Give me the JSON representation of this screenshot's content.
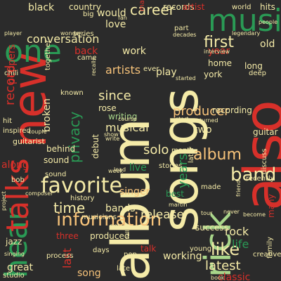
{
  "palette": {
    "background": "#2b2b2b",
    "red": "#d7302a",
    "green": "#2a9a55",
    "cream": "#f5eba8",
    "peach": "#f7c37a",
    "lightgreen": "#a8d68a",
    "orange": "#f08a4b"
  },
  "words": [
    {
      "text": "album",
      "color": "cream"
    },
    {
      "text": "songs",
      "color": "cream"
    },
    {
      "text": "also",
      "color": "red"
    },
    {
      "text": "new",
      "color": "red"
    },
    {
      "text": "hear",
      "color": "green"
    },
    {
      "text": "music",
      "color": "green"
    },
    {
      "text": "one",
      "color": "green"
    },
    {
      "text": "talks",
      "color": "red"
    },
    {
      "text": "rick",
      "color": "lightgreen"
    },
    {
      "text": "favorite",
      "color": "cream"
    },
    {
      "text": "information",
      "color": "peach"
    },
    {
      "text": "band",
      "color": "cream"
    },
    {
      "text": "like",
      "color": "cream"
    },
    {
      "text": "first",
      "color": "cream"
    },
    {
      "text": "album",
      "color": "peach"
    },
    {
      "text": "privacy",
      "color": "green"
    },
    {
      "text": "career",
      "color": "cream"
    },
    {
      "text": "conversation",
      "color": "cream"
    },
    {
      "text": "record",
      "color": "red"
    },
    {
      "text": "artists",
      "color": "peach"
    },
    {
      "text": "time",
      "color": "cream"
    },
    {
      "text": "broken",
      "color": "cream"
    },
    {
      "text": "solo",
      "color": "cream"
    },
    {
      "text": "producer",
      "color": "peach"
    },
    {
      "text": "musical",
      "color": "cream"
    },
    {
      "text": "since",
      "color": "cream"
    },
    {
      "text": "years",
      "color": "green"
    },
    {
      "text": "latest",
      "color": "cream"
    },
    {
      "text": "release",
      "color": "cream"
    },
    {
      "text": "rock",
      "color": "cream"
    },
    {
      "text": "bands",
      "color": "cream"
    },
    {
      "text": "last",
      "color": "red"
    },
    {
      "text": "song",
      "color": "peach"
    },
    {
      "text": "classic",
      "color": "red"
    },
    {
      "text": "life",
      "color": "green"
    },
    {
      "text": "black",
      "color": "cream"
    },
    {
      "text": "work",
      "color": "cream"
    },
    {
      "text": "play",
      "color": "cream"
    },
    {
      "text": "singer",
      "color": "peach"
    },
    {
      "text": "two",
      "color": "cream"
    },
    {
      "text": "best",
      "color": "green"
    },
    {
      "text": "recording",
      "color": "cream"
    },
    {
      "text": "sound",
      "color": "cream"
    },
    {
      "text": "behind",
      "color": "cream"
    },
    {
      "text": "guitarist",
      "color": "cream"
    },
    {
      "text": "writing",
      "color": "lightgreen"
    },
    {
      "text": "rose",
      "color": "cream"
    },
    {
      "text": "back",
      "color": "red"
    },
    {
      "text": "love",
      "color": "cream"
    },
    {
      "text": "would",
      "color": "cream"
    },
    {
      "text": "debut",
      "color": "cream"
    },
    {
      "text": "live",
      "color": "green"
    },
    {
      "text": "three",
      "color": "red"
    },
    {
      "text": "made",
      "color": "cream"
    },
    {
      "text": "history",
      "color": "cream"
    },
    {
      "text": "musicians",
      "color": "cream"
    },
    {
      "text": "produced",
      "color": "cream"
    },
    {
      "text": "success",
      "color": "cream"
    },
    {
      "text": "stories",
      "color": "cream"
    },
    {
      "text": "days",
      "color": "cream"
    },
    {
      "text": "pop",
      "color": "cream"
    },
    {
      "text": "working",
      "color": "cream"
    },
    {
      "text": "late",
      "color": "cream"
    },
    {
      "text": "talk",
      "color": "red"
    },
    {
      "text": "process",
      "color": "cream"
    },
    {
      "text": "great",
      "color": "cream"
    },
    {
      "text": "jazz",
      "color": "cream"
    },
    {
      "text": "studio",
      "color": "cream"
    },
    {
      "text": "hits",
      "color": "cream"
    },
    {
      "text": "country",
      "color": "cream"
    },
    {
      "text": "records",
      "color": "cream"
    },
    {
      "text": "artist",
      "color": "red"
    },
    {
      "text": "world",
      "color": "cream"
    },
    {
      "text": "big",
      "color": "cream"
    },
    {
      "text": "making",
      "color": "red"
    },
    {
      "text": "part",
      "color": "cream"
    },
    {
      "text": "old",
      "color": "cream"
    },
    {
      "text": "year",
      "color": "red"
    },
    {
      "text": "long",
      "color": "cream"
    },
    {
      "text": "deep",
      "color": "cream"
    },
    {
      "text": "home",
      "color": "cream"
    },
    {
      "text": "york",
      "color": "cream"
    },
    {
      "text": "came",
      "color": "cream"
    },
    {
      "text": "ever",
      "color": "cream"
    },
    {
      "text": "guitar",
      "color": "cream"
    },
    {
      "text": "month",
      "color": "cream"
    },
    {
      "text": "inspired",
      "color": "cream"
    },
    {
      "text": "hit",
      "color": "cream"
    },
    {
      "text": "bob",
      "color": "cream"
    },
    {
      "text": "along",
      "color": "red"
    },
    {
      "text": "sound",
      "color": "cream"
    },
    {
      "text": "lead",
      "color": "cream"
    },
    {
      "text": "tour",
      "color": "cream"
    },
    {
      "text": "set",
      "color": "cream"
    },
    {
      "text": "full",
      "color": "cream"
    },
    {
      "text": "young",
      "color": "cream"
    },
    {
      "text": "creative",
      "color": "cream"
    },
    {
      "text": "never",
      "color": "cream"
    },
    {
      "text": "become",
      "color": "cream"
    },
    {
      "text": "recently",
      "color": "cream"
    },
    {
      "text": "discuss",
      "color": "cream"
    },
    {
      "text": "friend",
      "color": "cream"
    },
    {
      "text": "many",
      "color": "red"
    },
    {
      "text": "family",
      "color": "cream"
    },
    {
      "text": "book",
      "color": "cream"
    },
    {
      "text": "peppers",
      "color": "red"
    },
    {
      "text": "chili",
      "color": "cream"
    },
    {
      "text": "series",
      "color": "cream"
    },
    {
      "text": "known",
      "color": "cream"
    },
    {
      "text": "together",
      "color": "cream"
    },
    {
      "text": "interview",
      "color": "cream"
    },
    {
      "text": "decades",
      "color": "cream"
    },
    {
      "text": "legendary",
      "color": "cream"
    },
    {
      "text": "people",
      "color": "cream"
    },
    {
      "text": "started",
      "color": "cream"
    },
    {
      "text": "couple",
      "color": "cream"
    },
    {
      "text": "composer",
      "color": "cream"
    },
    {
      "text": "singing",
      "color": "cream"
    },
    {
      "text": "project",
      "color": "cream"
    },
    {
      "text": "fan",
      "color": "cream"
    },
    {
      "text": "course",
      "color": "cream"
    },
    {
      "text": "write",
      "color": "cream"
    },
    {
      "text": "later",
      "color": "cream"
    },
    {
      "text": "show",
      "color": "cream"
    },
    {
      "text": "start",
      "color": "cream"
    },
    {
      "text": "turned",
      "color": "cream"
    },
    {
      "text": "player",
      "color": "cream"
    },
    {
      "text": "wonder",
      "color": "cream"
    },
    {
      "text": "martin",
      "color": "cream"
    },
    {
      "text": "week",
      "color": "cream"
    },
    {
      "text": "recalls",
      "color": "cream"
    }
  ]
}
